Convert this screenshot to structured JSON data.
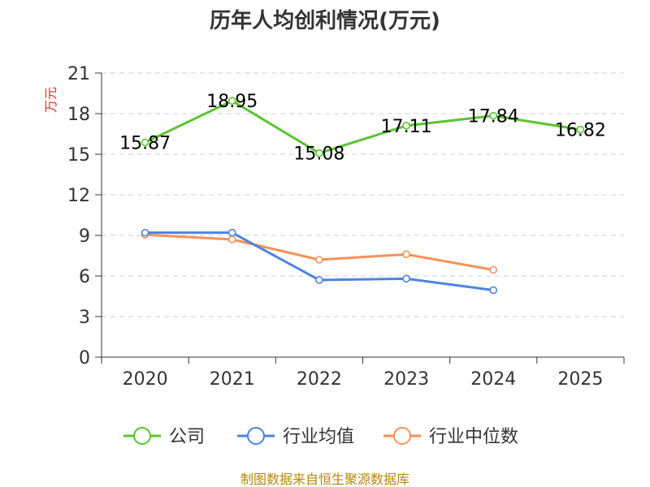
{
  "chart_data": {
    "type": "line",
    "title": "历年人均创利情况(万元)",
    "ylabel": "万元",
    "xlabel": "",
    "categories": [
      "2020",
      "2021",
      "2022",
      "2023",
      "2024",
      "2025"
    ],
    "ylim": [
      0,
      21
    ],
    "yticks": [
      0,
      3,
      6,
      9,
      12,
      15,
      18,
      21
    ],
    "ytick_labels": [
      "0",
      "3",
      "6",
      "9",
      "12",
      "15",
      "18",
      "21"
    ],
    "grid": true,
    "legend_position": "bottom-center",
    "series": [
      {
        "name": "公司",
        "color": "#5cc331",
        "values": [
          15.87,
          18.95,
          15.08,
          17.11,
          17.84,
          16.82
        ],
        "data_labels": [
          "15.87",
          "18.95",
          "15.08",
          "17.11",
          "17.84",
          "16.82"
        ]
      },
      {
        "name": "行业均值",
        "color": "#4e82de",
        "values": [
          9.2,
          9.2,
          5.7,
          5.8,
          4.95,
          null
        ]
      },
      {
        "name": "行业中位数",
        "color": "#f5915a",
        "values": [
          9.05,
          8.7,
          7.2,
          7.6,
          6.45,
          null
        ]
      }
    ]
  },
  "footer": {
    "source": "制图数据来自恒生聚源数据库",
    "source_color": "#b8860b"
  },
  "colors": {
    "axis": "#333333",
    "grid": "#cccccc",
    "ylabel": "#e02a2a"
  }
}
